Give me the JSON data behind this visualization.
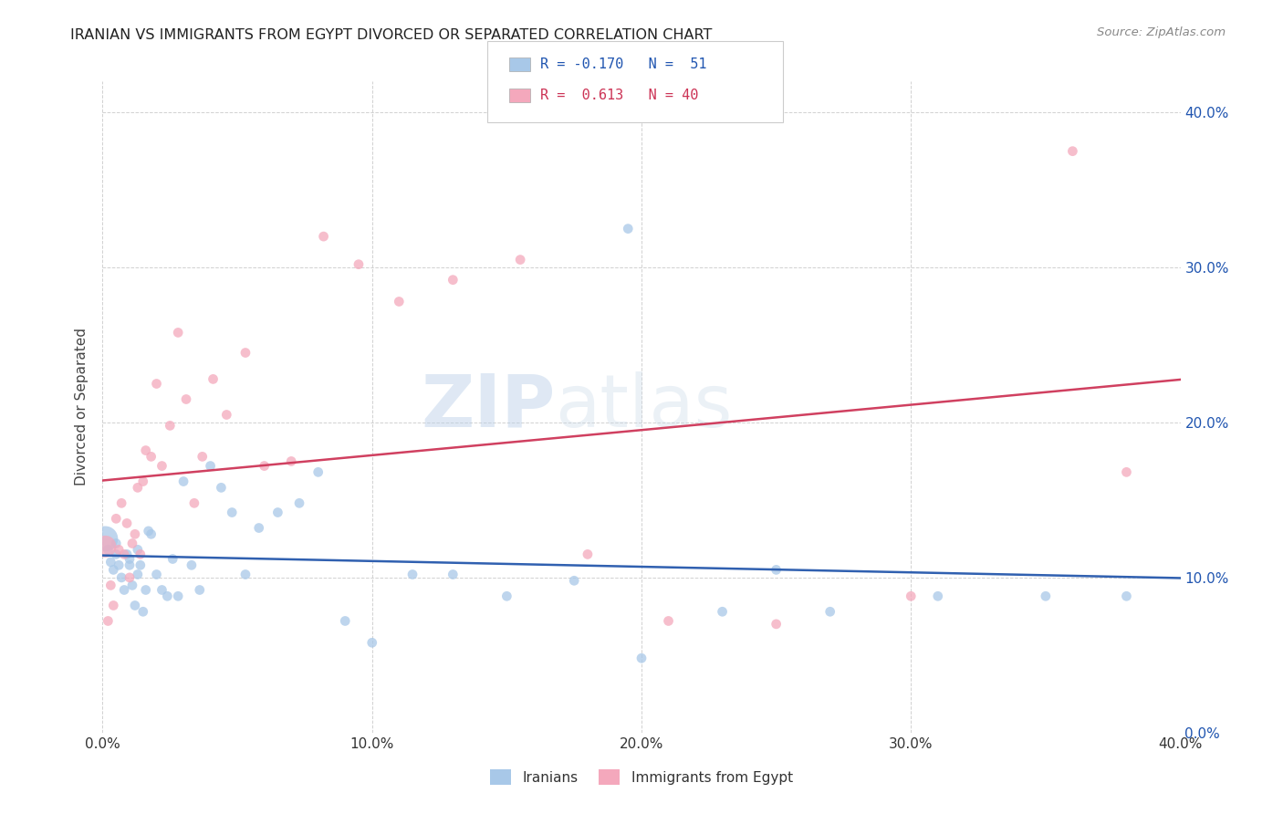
{
  "title": "IRANIAN VS IMMIGRANTS FROM EGYPT DIVORCED OR SEPARATED CORRELATION CHART",
  "source_text": "Source: ZipAtlas.com",
  "ylabel": "Divorced or Separated",
  "legend_labels": [
    "Iranians",
    "Immigrants from Egypt"
  ],
  "blue_color": "#a8c8e8",
  "pink_color": "#f4a8bc",
  "blue_line_color": "#3060b0",
  "pink_line_color": "#d04060",
  "blue_r_color": "#2055b0",
  "pink_r_color": "#cc3355",
  "text_color": "#2055b0",
  "xlim": [
    0.0,
    0.4
  ],
  "ylim": [
    0.0,
    0.42
  ],
  "watermark": "ZIPatlas",
  "legend_r1": "R = -0.170",
  "legend_n1": "N =  51",
  "legend_r2": "R =  0.613",
  "legend_n2": "N = 40",
  "iranians_x": [
    0.001,
    0.002,
    0.003,
    0.004,
    0.005,
    0.005,
    0.006,
    0.007,
    0.008,
    0.009,
    0.01,
    0.01,
    0.011,
    0.012,
    0.013,
    0.013,
    0.014,
    0.015,
    0.016,
    0.017,
    0.018,
    0.02,
    0.022,
    0.024,
    0.026,
    0.028,
    0.03,
    0.033,
    0.036,
    0.04,
    0.044,
    0.048,
    0.053,
    0.058,
    0.065,
    0.073,
    0.08,
    0.09,
    0.1,
    0.115,
    0.13,
    0.15,
    0.175,
    0.2,
    0.23,
    0.27,
    0.31,
    0.35,
    0.38,
    0.195,
    0.25
  ],
  "iranians_y": [
    0.125,
    0.118,
    0.11,
    0.105,
    0.115,
    0.122,
    0.108,
    0.1,
    0.092,
    0.115,
    0.108,
    0.112,
    0.095,
    0.082,
    0.118,
    0.102,
    0.108,
    0.078,
    0.092,
    0.13,
    0.128,
    0.102,
    0.092,
    0.088,
    0.112,
    0.088,
    0.162,
    0.108,
    0.092,
    0.172,
    0.158,
    0.142,
    0.102,
    0.132,
    0.142,
    0.148,
    0.168,
    0.072,
    0.058,
    0.102,
    0.102,
    0.088,
    0.098,
    0.048,
    0.078,
    0.078,
    0.088,
    0.088,
    0.088,
    0.325,
    0.105
  ],
  "iranians_size": [
    400,
    60,
    60,
    60,
    60,
    60,
    60,
    60,
    60,
    60,
    60,
    60,
    60,
    60,
    60,
    60,
    60,
    60,
    60,
    60,
    60,
    60,
    60,
    60,
    60,
    60,
    60,
    60,
    60,
    60,
    60,
    60,
    60,
    60,
    60,
    60,
    60,
    60,
    60,
    60,
    60,
    60,
    60,
    60,
    60,
    60,
    60,
    60,
    60,
    60,
    60
  ],
  "egypt_x": [
    0.001,
    0.003,
    0.004,
    0.005,
    0.006,
    0.007,
    0.008,
    0.009,
    0.01,
    0.011,
    0.012,
    0.013,
    0.014,
    0.015,
    0.016,
    0.018,
    0.02,
    0.022,
    0.025,
    0.028,
    0.031,
    0.034,
    0.037,
    0.041,
    0.046,
    0.053,
    0.06,
    0.07,
    0.082,
    0.095,
    0.11,
    0.13,
    0.155,
    0.18,
    0.21,
    0.25,
    0.3,
    0.36,
    0.002,
    0.38
  ],
  "egypt_y": [
    0.12,
    0.095,
    0.082,
    0.138,
    0.118,
    0.148,
    0.115,
    0.135,
    0.1,
    0.122,
    0.128,
    0.158,
    0.115,
    0.162,
    0.182,
    0.178,
    0.225,
    0.172,
    0.198,
    0.258,
    0.215,
    0.148,
    0.178,
    0.228,
    0.205,
    0.245,
    0.172,
    0.175,
    0.32,
    0.302,
    0.278,
    0.292,
    0.305,
    0.115,
    0.072,
    0.07,
    0.088,
    0.375,
    0.072,
    0.168
  ],
  "egypt_size": [
    300,
    60,
    60,
    60,
    60,
    60,
    60,
    60,
    60,
    60,
    60,
    60,
    60,
    60,
    60,
    60,
    60,
    60,
    60,
    60,
    60,
    60,
    60,
    60,
    60,
    60,
    60,
    60,
    60,
    60,
    60,
    60,
    60,
    60,
    60,
    60,
    60,
    60,
    60,
    60
  ]
}
